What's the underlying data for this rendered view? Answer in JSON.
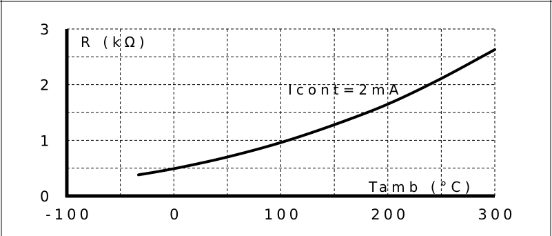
{
  "chart_data": {
    "type": "line",
    "title": "",
    "xlabel": "Tamb (°C)",
    "ylabel": "R (kΩ)",
    "annotation": "Icont=2mA",
    "xlim": [
      -100,
      300
    ],
    "ylim": [
      0,
      3
    ],
    "x_ticks": [
      -100,
      0,
      100,
      200,
      300
    ],
    "x_tick_labels": [
      "-100",
      "0",
      "100",
      "200",
      "300"
    ],
    "y_ticks": [
      0,
      1,
      2,
      3
    ],
    "y_tick_labels": [
      "0",
      "1",
      "2",
      "3"
    ],
    "grid": true,
    "series": [
      {
        "x": [
          -33,
          0,
          50,
          100,
          150,
          200,
          250,
          300
        ],
        "y": [
          0.38,
          0.49,
          0.7,
          0.96,
          1.28,
          1.65,
          2.11,
          2.63
        ]
      }
    ]
  }
}
